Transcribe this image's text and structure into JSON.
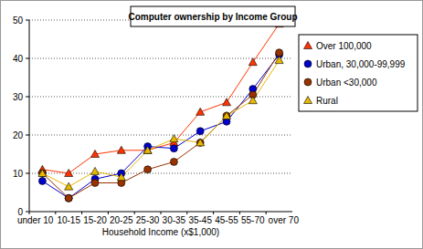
{
  "chart_data": {
    "type": "line",
    "title": "Computer ownership by Income Group",
    "x_label": "Household Income (x$1,000)",
    "categories": [
      "under 10",
      "10-15",
      "15-20",
      "20-25",
      "25-30",
      "30-35",
      "35-45",
      "45-55",
      "55-70",
      "over 70"
    ],
    "series": [
      {
        "name": "Over 100,000",
        "color": "#ff3300",
        "marker": "triangle",
        "values": [
          11,
          10,
          15,
          16,
          16,
          18,
          26,
          28.5,
          39,
          49
        ]
      },
      {
        "name": "Urban, 30,000-99,999",
        "color": "#0000cc",
        "marker": "circle",
        "values": [
          8,
          3.5,
          8.5,
          10,
          17,
          16.5,
          21,
          23.5,
          32,
          41
        ]
      },
      {
        "name": "Urban <30,000",
        "color": "#993300",
        "marker": "circle",
        "values": [
          10,
          3.5,
          7.5,
          7.5,
          11,
          13,
          18,
          25,
          30.5,
          41.5
        ]
      },
      {
        "name": "Rural",
        "color": "#e6b800",
        "marker": "triangle",
        "values": [
          10,
          6.5,
          10.5,
          9,
          16,
          19,
          18,
          25,
          29,
          39.5
        ]
      }
    ],
    "ylim": [
      0,
      50
    ],
    "yticks": [
      0,
      10,
      20,
      30,
      40,
      50
    ],
    "grid": true,
    "legend": "right"
  }
}
